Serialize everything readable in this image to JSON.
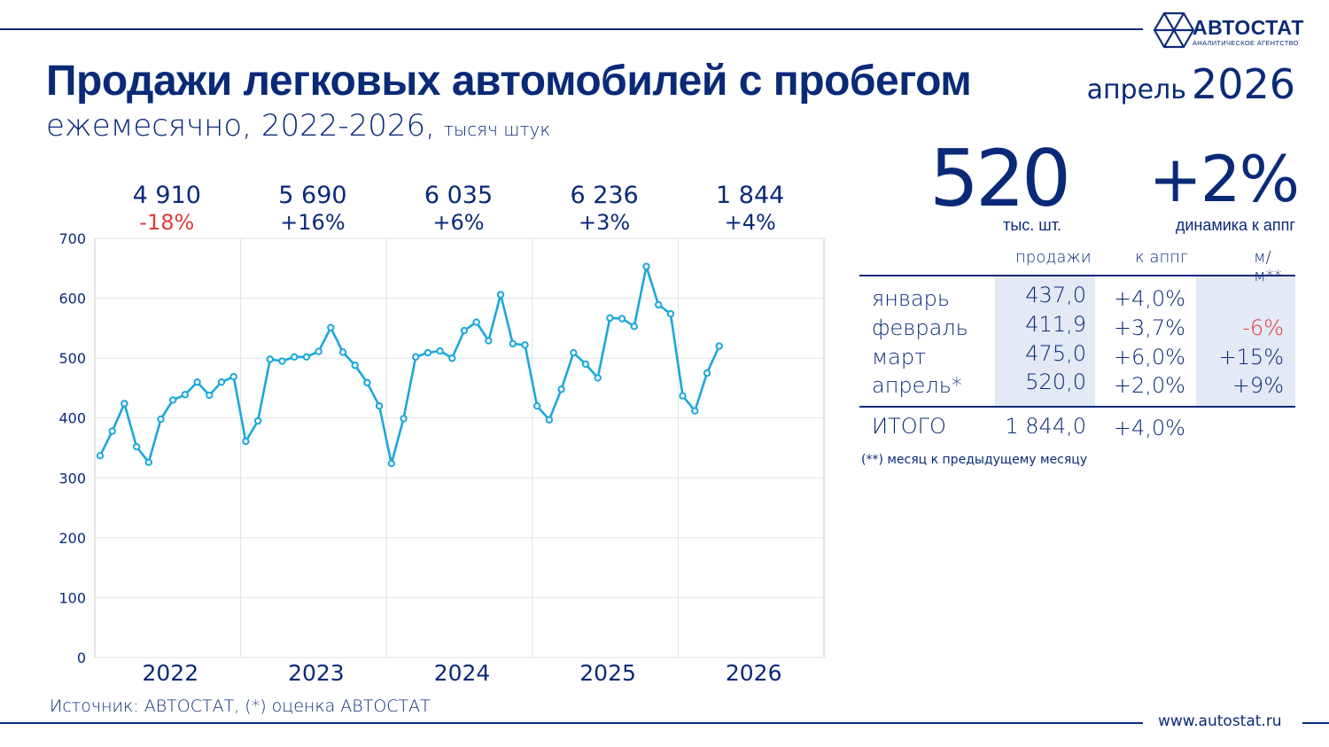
{
  "header": {
    "logo_text": "АВТОСТАТ",
    "logo_subtitle": "АНАЛИТИЧЕСКОЕ АГЕНТСТВО",
    "title": "Продажи легковых автомобилей с пробегом",
    "subtitle": "ежемесячно, 2022-2026,",
    "unit": "тысяч штук",
    "period_month": "апрель",
    "period_year": "2026"
  },
  "kpi": {
    "value": "520",
    "value_label": "тыс. шт.",
    "change": "+2%",
    "change_label": "динамика к аппг"
  },
  "table": {
    "headers": [
      "продажи",
      "к аппг",
      "м/м**"
    ],
    "rows": [
      {
        "month": "январь",
        "sales": "437,0",
        "yoy": "+4,0%",
        "mom": ""
      },
      {
        "month": "февраль",
        "sales": "411,9",
        "yoy": "+3,7%",
        "mom": "-6%",
        "mom_negative": true
      },
      {
        "month": "март",
        "sales": "475,0",
        "yoy": "+6,0%",
        "mom": "+15%"
      },
      {
        "month": "апрель*",
        "sales": "520,0",
        "yoy": "+2,0%",
        "mom": "+9%"
      }
    ],
    "total": {
      "label": "ИТОГО",
      "sales": "1 844,0",
      "yoy": "+4,0%"
    },
    "footnote": "(**) месяц к предыдущему месяцу"
  },
  "footer": {
    "source": "Источник: АВТОСТАТ, (*) оценка АВТОСТАТ",
    "website": "www.autostat.ru"
  },
  "colors": {
    "brand": "#0a2a78",
    "line": "#1aa8dc",
    "negative": "#e03a3a",
    "table_shade": "#e3e9f5"
  },
  "chart_data": {
    "type": "line",
    "ylim": [
      0,
      700
    ],
    "yticks": [
      0,
      100,
      200,
      300,
      400,
      500,
      600,
      700
    ],
    "grid": true,
    "years": [
      {
        "label": "2022",
        "total": "4 910",
        "change": "-18%",
        "negative": true
      },
      {
        "label": "2023",
        "total": "5 690",
        "change": "+16%"
      },
      {
        "label": "2024",
        "total": "6 035",
        "change": "+6%"
      },
      {
        "label": "2025",
        "total": "6 236",
        "change": "+3%"
      },
      {
        "label": "2026",
        "total": "1 844",
        "change": "+4%"
      }
    ],
    "values": [
      337,
      378,
      424,
      352,
      326,
      398,
      430,
      439,
      460,
      438,
      460,
      469,
      361,
      395,
      498,
      495,
      502,
      502,
      511,
      551,
      510,
      488,
      459,
      420,
      324,
      399,
      502,
      509,
      512,
      500,
      546,
      560,
      529,
      606,
      524,
      522,
      420,
      397,
      448,
      509,
      490,
      467,
      567,
      566,
      553,
      653,
      589,
      574,
      437,
      411.9,
      475,
      520
    ]
  }
}
